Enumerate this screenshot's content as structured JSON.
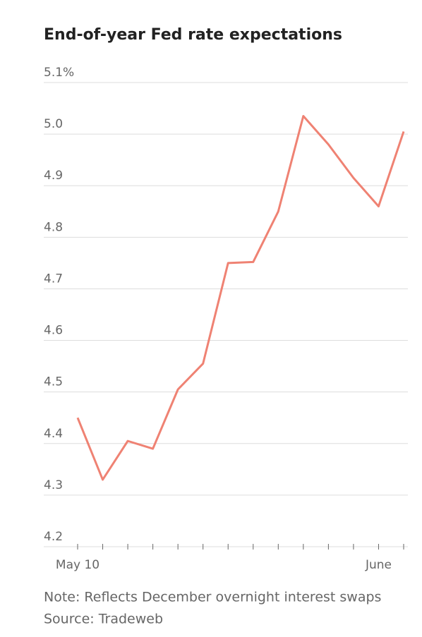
{
  "chart_data": {
    "type": "line",
    "title": "End-of-year Fed rate expectations",
    "note": "Note: Reflects December overnight interest swaps",
    "source": "Source: Tradeweb",
    "categories": [
      "May 10",
      null,
      null,
      null,
      null,
      null,
      null,
      null,
      null,
      null,
      null,
      null,
      "June",
      null
    ],
    "series": [
      {
        "name": "Fed rate expectations",
        "color": "#ef8273",
        "values": [
          4.45,
          4.33,
          4.405,
          4.39,
          4.505,
          4.555,
          4.75,
          4.752,
          4.85,
          5.035,
          4.98,
          4.915,
          4.86,
          5.005
        ]
      }
    ],
    "ylim": [
      4.2,
      5.1
    ],
    "yticks": [
      4.2,
      4.3,
      4.4,
      4.5,
      4.6,
      4.7,
      4.8,
      4.9,
      {
        "value": 5.0,
        "label": "5.0"
      },
      {
        "value": 5.1,
        "label": "5.1%"
      }
    ],
    "grid": true
  }
}
